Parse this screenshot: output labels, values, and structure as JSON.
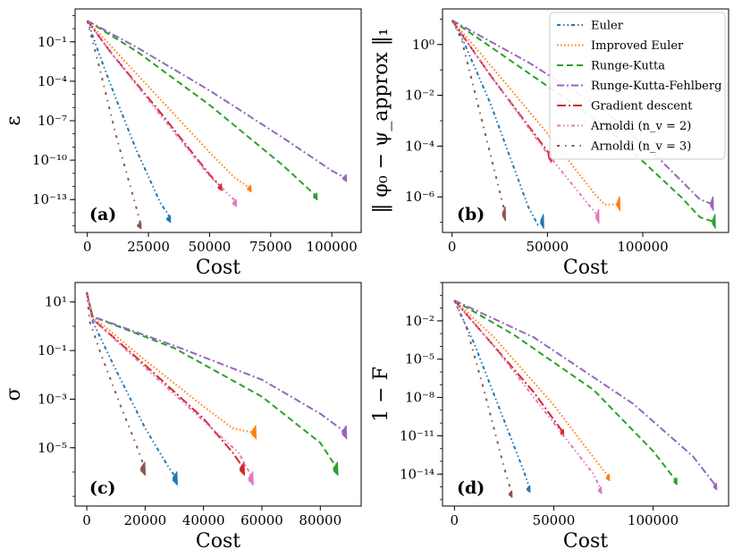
{
  "chart_data": [
    {
      "type": "line",
      "panel_label": "(a)",
      "ylabel": "ε",
      "xlabel": "Cost",
      "yscale": "log",
      "xlim": [
        -5000,
        112000
      ],
      "ylim_log10": [
        -15.5,
        1.5
      ],
      "xticks": [
        0,
        25000,
        50000,
        75000,
        100000
      ],
      "xtick_labels": [
        "0",
        "25000",
        "50000",
        "75000",
        "100000"
      ],
      "yticks_log10": [
        -1,
        -4,
        -7,
        -10,
        -13
      ],
      "ytick_labels": [
        "10⁻¹",
        "10⁻⁴",
        "10⁻⁷",
        "10⁻¹⁰",
        "10⁻¹³"
      ],
      "series": [
        {
          "name": "Euler",
          "x": [
            0,
            4000,
            10000,
            20000,
            30000,
            33000,
            34000
          ],
          "y_log10": [
            0.6,
            -1.5,
            -4.5,
            -9.2,
            -13.3,
            -14.1,
            -14.5
          ]
        },
        {
          "name": "Improved Euler",
          "x": [
            0,
            10000,
            30000,
            50000,
            60000,
            67000
          ],
          "y_log10": [
            0.6,
            -1.4,
            -5.4,
            -9.4,
            -11.3,
            -12.2
          ]
        },
        {
          "name": "Runge-Kutta",
          "x": [
            0,
            20000,
            50000,
            80000,
            94000
          ],
          "y_log10": [
            0.6,
            -1.7,
            -5.8,
            -10.4,
            -12.8
          ]
        },
        {
          "name": "Runge-Kutta-Fehlberg",
          "x": [
            0,
            20000,
            50000,
            80000,
            100000,
            106000
          ],
          "y_log10": [
            0.6,
            -1.4,
            -4.7,
            -8.3,
            -10.8,
            -11.4
          ]
        },
        {
          "name": "Gradient descent",
          "x": [
            0,
            10000,
            30000,
            50000,
            55000
          ],
          "y_log10": [
            0.6,
            -1.9,
            -6.4,
            -11.1,
            -12.1
          ]
        },
        {
          "name": "Arnoldi (n_v = 2)",
          "x": [
            0,
            10000,
            30000,
            50000,
            60000,
            61000
          ],
          "y_log10": [
            0.6,
            -1.9,
            -6.6,
            -11.2,
            -13.0,
            -13.3
          ]
        },
        {
          "name": "Arnoldi (n_v = 3)",
          "x": [
            0,
            5000,
            12000,
            20000,
            22000
          ],
          "y_log10": [
            0.6,
            -3.0,
            -8.3,
            -13.6,
            -15.0
          ]
        }
      ]
    },
    {
      "type": "line",
      "panel_label": "(b)",
      "ylabel": "‖ φ₀ − ψ_approx ‖₁",
      "xlabel": "Cost",
      "yscale": "log",
      "xlim": [
        -5000,
        145000
      ],
      "ylim_log10": [
        -7.4,
        1.4
      ],
      "xticks": [
        0,
        50000,
        100000
      ],
      "xtick_labels": [
        "0",
        "50000",
        "100000"
      ],
      "yticks_log10": [
        0,
        -2,
        -4,
        -6
      ],
      "ytick_labels": [
        "10⁰",
        "10⁻²",
        "10⁻⁴",
        "10⁻⁶"
      ],
      "series": [
        {
          "name": "Euler",
          "x": [
            0,
            5000,
            20000,
            40000,
            45000,
            48000
          ],
          "y_log10": [
            0.95,
            0.3,
            -2.3,
            -6.4,
            -7.1,
            -7.0
          ]
        },
        {
          "name": "Improved Euler",
          "x": [
            0,
            20000,
            50000,
            75000,
            80000,
            88000
          ],
          "y_log10": [
            0.95,
            -0.8,
            -3.5,
            -5.9,
            -6.3,
            -6.3
          ]
        },
        {
          "name": "Runge-Kutta",
          "x": [
            0,
            30000,
            80000,
            120000,
            130000,
            138000
          ],
          "y_log10": [
            0.95,
            -0.6,
            -3.2,
            -6.0,
            -6.8,
            -7.0
          ]
        },
        {
          "name": "Runge-Kutta-Fehlberg",
          "x": [
            0,
            40000,
            80000,
            110000,
            130000,
            137000
          ],
          "y_log10": [
            0.95,
            -0.7,
            -2.6,
            -4.6,
            -6.1,
            -6.3
          ]
        },
        {
          "name": "Gradient descent",
          "x": [
            0,
            20000,
            40000,
            52000
          ],
          "y_log10": [
            0.95,
            -1.2,
            -3.2,
            -4.4
          ]
        },
        {
          "name": "Arnoldi (n_v = 2)",
          "x": [
            0,
            20000,
            50000,
            77000
          ],
          "y_log10": [
            0.95,
            -1.2,
            -4.3,
            -6.8
          ]
        },
        {
          "name": "Arnoldi (n_v = 3)",
          "x": [
            0,
            5000,
            15000,
            28000
          ],
          "y_log10": [
            0.95,
            0.2,
            -2.8,
            -6.7
          ]
        }
      ]
    },
    {
      "type": "line",
      "panel_label": "(c)",
      "ylabel": "σ",
      "xlabel": "Cost",
      "yscale": "log",
      "xlim": [
        -4000,
        94000
      ],
      "ylim_log10": [
        -7.4,
        1.8
      ],
      "xticks": [
        0,
        20000,
        40000,
        60000,
        80000
      ],
      "xtick_labels": [
        "0",
        "20000",
        "40000",
        "60000",
        "80000"
      ],
      "yticks_log10": [
        1,
        -1,
        -3,
        -5
      ],
      "ytick_labels": [
        "10¹",
        "10⁻¹",
        "10⁻³",
        "10⁻⁵"
      ],
      "series": [
        {
          "name": "Euler",
          "x": [
            0,
            2000,
            10000,
            20000,
            28000,
            31000
          ],
          "y_log10": [
            1.4,
            0.2,
            -1.8,
            -4.2,
            -5.8,
            -6.3
          ]
        },
        {
          "name": "Improved Euler",
          "x": [
            0,
            2000,
            20000,
            40000,
            50000,
            58000
          ],
          "y_log10": [
            1.4,
            0.4,
            -1.4,
            -3.3,
            -4.2,
            -4.4
          ]
        },
        {
          "name": "Runge-Kutta",
          "x": [
            0,
            2000,
            30000,
            60000,
            80000,
            86000
          ],
          "y_log10": [
            1.4,
            0.4,
            -0.9,
            -2.9,
            -4.8,
            -5.9
          ]
        },
        {
          "name": "Runge-Kutta-Fehlberg",
          "x": [
            0,
            2000,
            30000,
            60000,
            80000,
            89000
          ],
          "y_log10": [
            1.4,
            0.4,
            -0.8,
            -2.2,
            -3.6,
            -4.4
          ]
        },
        {
          "name": "Gradient descent",
          "x": [
            0,
            2000,
            20000,
            40000,
            50000,
            54000
          ],
          "y_log10": [
            1.4,
            0.3,
            -1.6,
            -3.8,
            -5.2,
            -5.9
          ]
        },
        {
          "name": "Arnoldi (n_v = 2)",
          "x": [
            0,
            2000,
            20000,
            40000,
            52000,
            57000
          ],
          "y_log10": [
            1.4,
            0.3,
            -1.7,
            -3.9,
            -5.2,
            -6.3
          ]
        },
        {
          "name": "Arnoldi (n_v = 3)",
          "x": [
            0,
            1000,
            5000,
            12000,
            17000,
            20000
          ],
          "y_log10": [
            1.4,
            0.2,
            -1.2,
            -3.4,
            -4.9,
            -5.9
          ]
        }
      ]
    },
    {
      "type": "line",
      "panel_label": "(d)",
      "ylabel": "1 − F",
      "xlabel": "Cost",
      "yscale": "log",
      "xlim": [
        -6000,
        138000
      ],
      "ylim_log10": [
        -16.5,
        1.0
      ],
      "xticks": [
        0,
        50000,
        100000
      ],
      "xtick_labels": [
        "0",
        "50000",
        "100000"
      ],
      "yticks_log10": [
        -2,
        -5,
        -8,
        -11,
        -14
      ],
      "ytick_labels": [
        "10⁻²",
        "10⁻⁵",
        "10⁻⁸",
        "10⁻¹¹",
        "10⁻¹⁴"
      ],
      "series": [
        {
          "name": "Euler",
          "x": [
            0,
            10000,
            25000,
            35000,
            38000
          ],
          "y_log10": [
            -0.4,
            -3.8,
            -9.8,
            -13.8,
            -15.2
          ]
        },
        {
          "name": "Improved Euler",
          "x": [
            0,
            20000,
            50000,
            70000,
            78000
          ],
          "y_log10": [
            -0.4,
            -3.3,
            -8.6,
            -12.7,
            -14.3
          ]
        },
        {
          "name": "Runge-Kutta",
          "x": [
            0,
            30000,
            70000,
            100000,
            112000
          ],
          "y_log10": [
            -0.4,
            -3.1,
            -7.4,
            -12.2,
            -14.6
          ]
        },
        {
          "name": "Runge-Kutta-Fehlberg",
          "x": [
            0,
            40000,
            90000,
            120000,
            132000
          ],
          "y_log10": [
            -0.4,
            -3.3,
            -8.5,
            -12.6,
            -15.0
          ]
        },
        {
          "name": "Gradient descent",
          "x": [
            0,
            20000,
            40000,
            55000
          ],
          "y_log10": [
            -0.4,
            -4.0,
            -7.6,
            -10.8
          ]
        },
        {
          "name": "Arnoldi (n_v = 2)",
          "x": [
            0,
            20000,
            50000,
            70000,
            74000
          ],
          "y_log10": [
            -0.4,
            -4.0,
            -10.0,
            -14.0,
            -15.3
          ]
        },
        {
          "name": "Arnoldi (n_v = 3)",
          "x": [
            0,
            6000,
            15000,
            25000,
            29000
          ],
          "y_log10": [
            -0.4,
            -2.5,
            -7.5,
            -13.5,
            -15.6
          ]
        }
      ]
    }
  ],
  "legend": {
    "placement": "top-right of panel (b)",
    "entries": [
      {
        "label": "Euler",
        "color": "#1f77b4",
        "dash": "dash-dot-dot"
      },
      {
        "label": "Improved Euler",
        "color": "#ff7f0e",
        "dash": "dotted"
      },
      {
        "label": "Runge-Kutta",
        "color": "#2ca02c",
        "dash": "dashed"
      },
      {
        "label": "Runge-Kutta-Fehlberg",
        "color": "#9467bd",
        "dash": "dash-dot"
      },
      {
        "label": "Gradient descent",
        "color": "#d62728",
        "dash": "long-dash-dot"
      },
      {
        "label": "Arnoldi (n_v = 2)",
        "color": "#e377c2",
        "dash": "dash-dot-dot"
      },
      {
        "label": "Arnoldi (n_v = 3)",
        "color": "#8c564b",
        "dash": "sparse-dash-dot"
      }
    ]
  }
}
